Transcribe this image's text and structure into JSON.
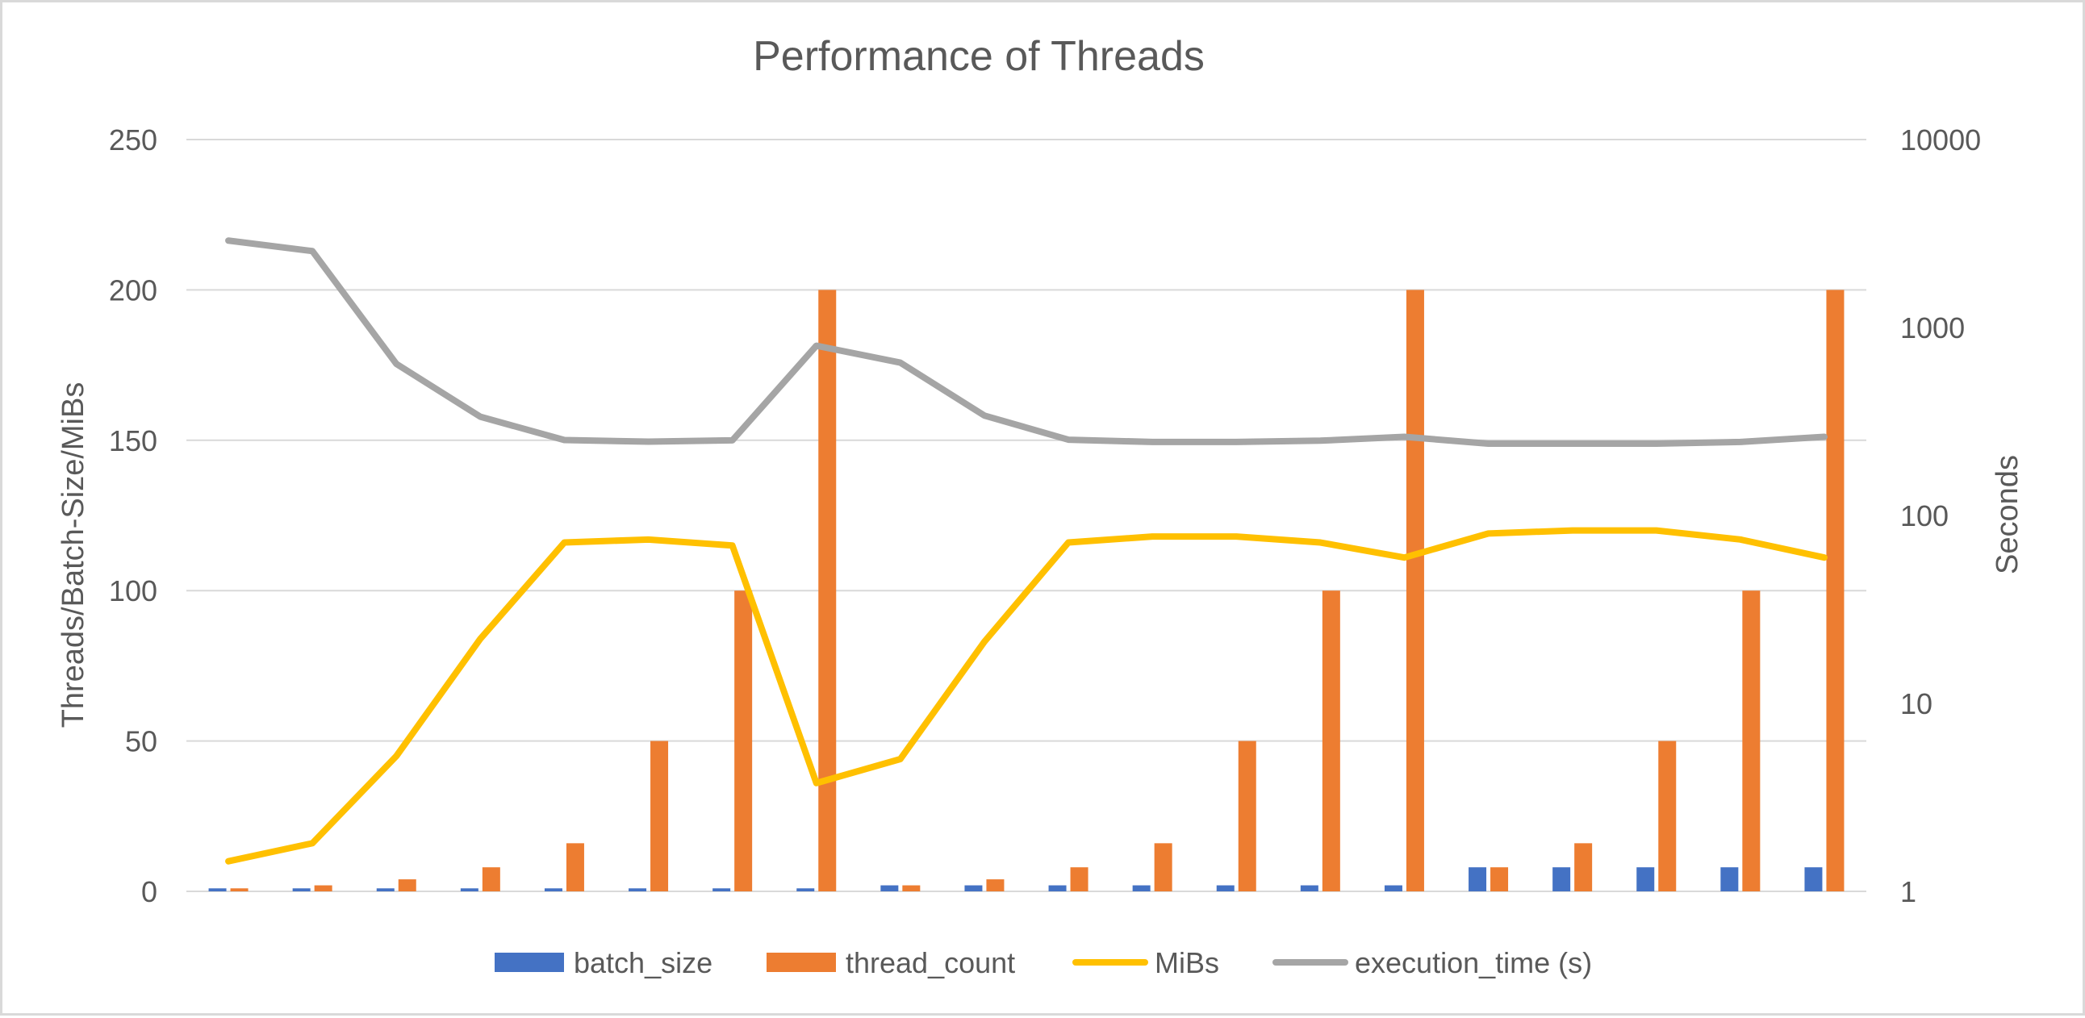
{
  "chart_data": {
    "type": "bar",
    "title": "Performance of Threads",
    "ylabel": "Threads/Batch-Size/MiBs",
    "y2label": "Seconds",
    "ylim": [
      0,
      250
    ],
    "y2lim": [
      1,
      10000
    ],
    "y2scale": "log",
    "yticks": [
      "0",
      "50",
      "100",
      "150",
      "200",
      "250"
    ],
    "y2ticks": [
      "1",
      "10",
      "100",
      "1000",
      "10000"
    ],
    "categories": [
      "",
      "",
      "",
      "",
      "",
      "",
      "",
      "",
      "",
      "",
      "",
      "",
      "",
      "",
      "",
      "",
      "",
      "",
      "",
      ""
    ],
    "grid": true,
    "legend_position": "bottom",
    "series": [
      {
        "name": "batch_size",
        "type": "bar",
        "axis": "left",
        "color": "#4472C4",
        "values": [
          1,
          1,
          1,
          1,
          1,
          1,
          1,
          1,
          2,
          2,
          2,
          2,
          2,
          2,
          2,
          8,
          8,
          8,
          8,
          8
        ]
      },
      {
        "name": "thread_count",
        "type": "bar",
        "axis": "left",
        "color": "#ED7D31",
        "values": [
          1,
          2,
          4,
          8,
          16,
          50,
          100,
          200,
          2,
          4,
          8,
          16,
          50,
          100,
          200,
          8,
          16,
          50,
          100,
          200
        ]
      },
      {
        "name": "MiBs",
        "type": "line",
        "axis": "left",
        "color": "#FFC000",
        "values": [
          10,
          16,
          45,
          84,
          116,
          117,
          115,
          36,
          44,
          83,
          116,
          118,
          118,
          116,
          111,
          119,
          120,
          120,
          117,
          111
        ]
      },
      {
        "name": "execution_time (s)",
        "type": "line",
        "axis": "right",
        "color": "#A5A5A5",
        "values": [
          2900,
          2550,
          640,
          335,
          252,
          247,
          251,
          800,
          650,
          340,
          253,
          246,
          246,
          250,
          262,
          241,
          241,
          241,
          246,
          262
        ]
      }
    ]
  }
}
